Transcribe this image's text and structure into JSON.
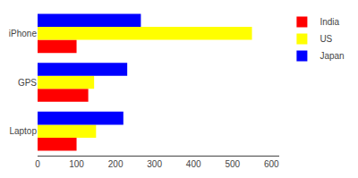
{
  "chart_data": {
    "type": "bar",
    "orientation": "horizontal",
    "categories": [
      "Laptop",
      "GPS",
      "iPhone"
    ],
    "series": [
      {
        "name": "India",
        "color": "#FF0000",
        "values": [
          100,
          130,
          100
        ]
      },
      {
        "name": "US",
        "color": "#FFFF00",
        "values": [
          150,
          145,
          550
        ]
      },
      {
        "name": "Japan",
        "color": "#0000FF",
        "values": [
          220,
          230,
          265
        ]
      }
    ],
    "xlim": [
      0,
      620
    ],
    "xticks": [
      0,
      100,
      200,
      300,
      400,
      500,
      600
    ],
    "grid": false,
    "legend": "right"
  }
}
